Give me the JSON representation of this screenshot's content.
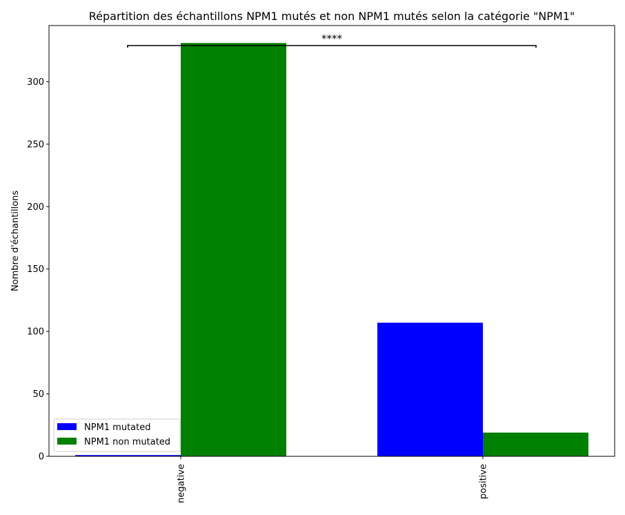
{
  "chart_data": {
    "type": "bar",
    "title": "Répartition des échantillons NPM1 mutés et non NPM1 mutés selon la catégorie \"NPM1\"",
    "xlabel": "",
    "ylabel": "Nombre d'échantillons",
    "categories": [
      "negative",
      "positive"
    ],
    "series": [
      {
        "name": "NPM1 mutated",
        "color": "#0000ff",
        "values": [
          1,
          107
        ]
      },
      {
        "name": "NPM1 non mutated",
        "color": "#008000",
        "values": [
          331,
          19
        ]
      }
    ],
    "ylim": [
      0,
      345
    ],
    "yticks": [
      0,
      50,
      100,
      150,
      200,
      250,
      300
    ],
    "annotation": "****",
    "legend_position": "lower-left",
    "grid": false
  }
}
